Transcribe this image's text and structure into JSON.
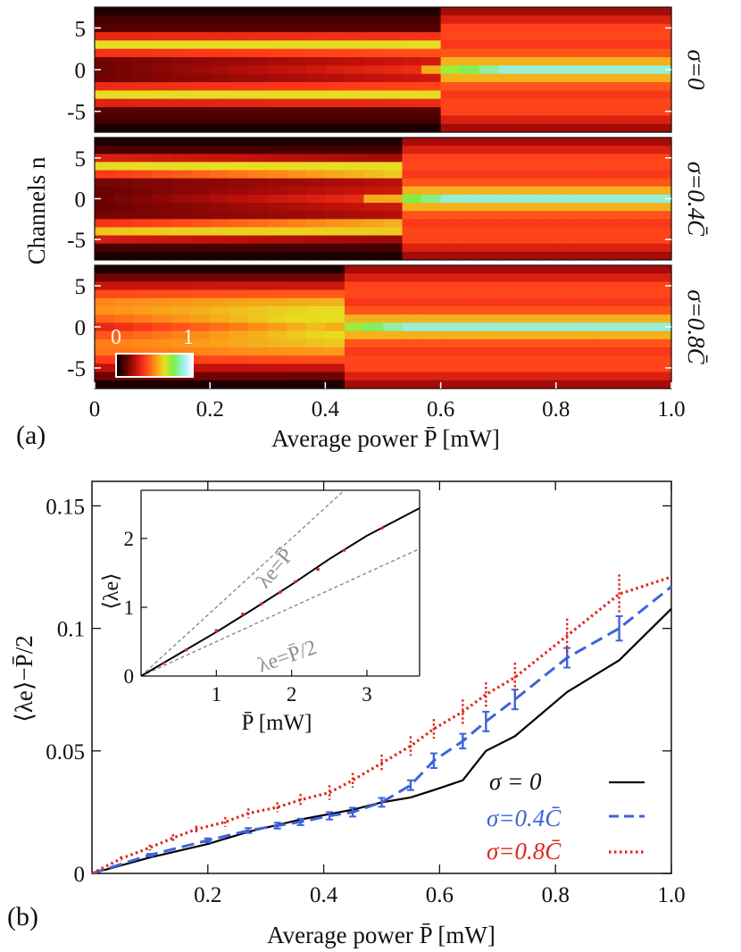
{
  "figure": {
    "panel_a_label": "(a)",
    "panel_b_label": "(b)"
  },
  "chart_data": [
    {
      "type": "heatmap",
      "panel": "(a)",
      "title": "",
      "xlabel": "Average power P̄ [mW]",
      "ylabel": "Channels n",
      "xlim": [
        0,
        1.0
      ],
      "ylim": [
        -7,
        7
      ],
      "xticks": [
        0,
        0.2,
        0.4,
        0.6,
        0.8,
        1.0
      ],
      "xtick_labels": [
        "0",
        "0.2",
        "0.4",
        "0.6",
        "0.8",
        "1.0"
      ],
      "yticks": [
        5,
        0,
        -5
      ],
      "ytick_labels": [
        "5",
        "0",
        "-5"
      ],
      "colorbar": {
        "min_label": "0",
        "max_label": "1",
        "colors": [
          "#000000",
          "#5a0000",
          "#c0100a",
          "#ff3a1a",
          "#ff8a18",
          "#e6e020",
          "#7cf046",
          "#98f0ee",
          "#ffffff"
        ]
      },
      "power_columns": [
        0.017,
        0.05,
        0.083,
        0.117,
        0.15,
        0.183,
        0.217,
        0.25,
        0.283,
        0.317,
        0.35,
        0.383,
        0.417,
        0.45,
        0.483,
        0.517,
        0.55,
        0.583,
        0.617,
        0.65,
        0.683,
        0.717,
        0.75,
        0.783,
        0.817,
        0.85,
        0.883,
        0.917,
        0.95,
        0.983
      ],
      "panels": [
        {
          "label": "σ=0",
          "notes": "Light power splits into symmetric bands near n=±3; above ~0.6 mW it localizes at n=0 (cyan = intensity ~0.85)."
        },
        {
          "label": "σ=0.4C̄",
          "notes": "Bands near n=+4 and n=-4 at low power; localization at n=0 beyond ~0.52 mW."
        },
        {
          "label": "σ=0.8C̄",
          "notes": "Diffuse spreading at low power; gradual localization at n=0 from ~0.44 mW."
        }
      ]
    },
    {
      "type": "line",
      "panel": "(b)",
      "title": "",
      "xlabel": "Average power P̄ [mW]",
      "ylabel": "⟨λe⟩−P̄/2",
      "xlim": [
        0,
        1.0
      ],
      "ylim": [
        0,
        0.16
      ],
      "xticks": [
        0.2,
        0.4,
        0.6,
        0.8,
        1.0
      ],
      "xtick_labels": [
        "0.2",
        "0.4",
        "0.6",
        "0.8",
        "1.0"
      ],
      "yticks": [
        0,
        0.05,
        0.1,
        0.15
      ],
      "ytick_labels": [
        "0",
        "0.05",
        "0.1",
        "0.15"
      ],
      "legend_position": "bottom-right",
      "series": [
        {
          "name": "σ = 0",
          "color": "#000000",
          "style": "solid",
          "x": [
            0,
            0.1,
            0.2,
            0.27,
            0.36,
            0.45,
            0.5,
            0.55,
            0.59,
            0.64,
            0.68,
            0.73,
            0.82,
            0.91,
            1.0
          ],
          "y": [
            0,
            0.0065,
            0.012,
            0.017,
            0.022,
            0.026,
            0.029,
            0.031,
            0.034,
            0.038,
            0.05,
            0.056,
            0.074,
            0.087,
            0.108
          ]
        },
        {
          "name": "σ=0.4C̄",
          "color": "#3f63d8",
          "style": "dashed",
          "x": [
            0,
            0.1,
            0.2,
            0.27,
            0.32,
            0.36,
            0.41,
            0.45,
            0.5,
            0.55,
            0.59,
            0.64,
            0.68,
            0.73,
            0.82,
            0.91,
            1.0
          ],
          "y": [
            0,
            0.0075,
            0.0135,
            0.0175,
            0.0195,
            0.021,
            0.0235,
            0.025,
            0.029,
            0.036,
            0.046,
            0.054,
            0.062,
            0.071,
            0.088,
            0.1,
            0.117
          ],
          "err": [
            0,
            0.0005,
            0.0008,
            0.001,
            0.0012,
            0.0013,
            0.0015,
            0.0018,
            0.0018,
            0.002,
            0.003,
            0.003,
            0.004,
            0.004,
            0.004,
            0.005,
            0
          ]
        },
        {
          "name": "σ=0.8C̄",
          "color": "#e0261c",
          "style": "dotted",
          "x": [
            0,
            0.05,
            0.1,
            0.14,
            0.18,
            0.23,
            0.27,
            0.32,
            0.36,
            0.41,
            0.45,
            0.5,
            0.55,
            0.59,
            0.64,
            0.68,
            0.73,
            0.82,
            0.91,
            1.0
          ],
          "y": [
            0,
            0.006,
            0.0105,
            0.0145,
            0.018,
            0.021,
            0.0245,
            0.027,
            0.03,
            0.033,
            0.038,
            0.045,
            0.052,
            0.059,
            0.066,
            0.073,
            0.08,
            0.097,
            0.114,
            0.121
          ],
          "err": [
            0,
            0.001,
            0.0012,
            0.0015,
            0.0015,
            0.002,
            0.002,
            0.002,
            0.0025,
            0.003,
            0.003,
            0.0035,
            0.004,
            0.004,
            0.005,
            0.005,
            0.006,
            0.007,
            0.008,
            0
          ]
        }
      ],
      "inset": {
        "type": "line",
        "xlabel": "P̄ [mW]",
        "ylabel": "⟨λe⟩",
        "xlim": [
          0,
          3.7
        ],
        "ylim": [
          0,
          2.7
        ],
        "xticks": [
          1,
          2,
          3
        ],
        "xtick_labels": [
          "1",
          "2",
          "3"
        ],
        "yticks": [
          0,
          1,
          2
        ],
        "ytick_labels": [
          "0",
          "1",
          "2"
        ],
        "reference_lines": [
          {
            "label": "λe=P̄",
            "slope": 1.0
          },
          {
            "label": "λe=P̄/2",
            "slope": 0.5
          }
        ],
        "series": [
          {
            "name": "σ = 0",
            "color": "#000000",
            "x": [
              0,
              0.5,
              1.0,
              1.5,
              2.0,
              2.5,
              3.0,
              3.7
            ],
            "y": [
              0,
              0.32,
              0.64,
              0.98,
              1.33,
              1.7,
              2.04,
              2.44
            ]
          },
          {
            "name": "σ=0.8C̄",
            "color": "#e0261c",
            "style": "points",
            "x": [
              0.3,
              0.6,
              1.0,
              1.35,
              1.6,
              1.85,
              2.05,
              2.35,
              2.7,
              3.2
            ],
            "y": [
              0.19,
              0.38,
              0.66,
              0.9,
              1.05,
              1.22,
              1.37,
              1.55,
              1.83,
              2.15
            ]
          }
        ]
      }
    }
  ]
}
